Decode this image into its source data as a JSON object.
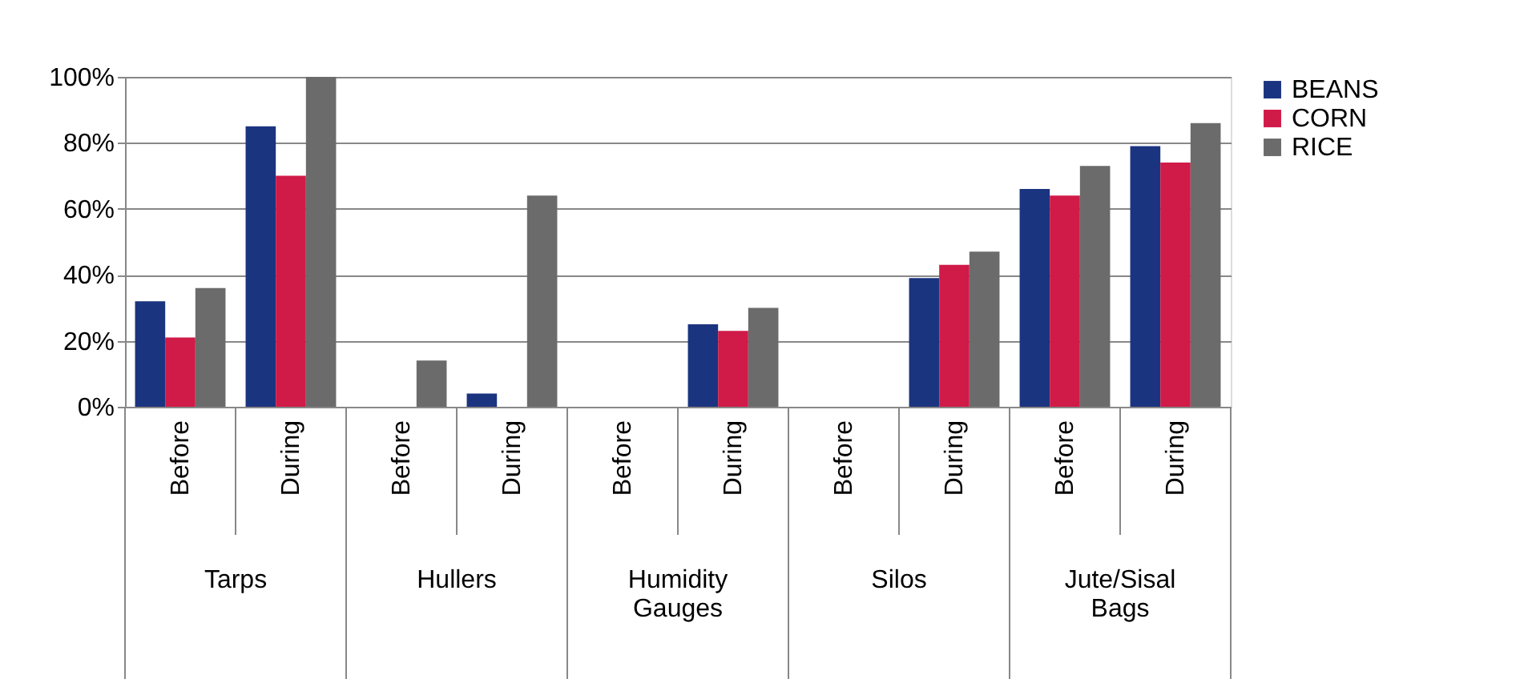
{
  "chart_data": {
    "type": "bar",
    "categories": [
      "Before",
      "During",
      "Before",
      "During",
      "Before",
      "During",
      "Before",
      "During",
      "Before",
      "During"
    ],
    "annotations": [
      "Tarps",
      "Hullers",
      "Humidity Gauges",
      "Silos",
      "Jute/Sisal Bags"
    ],
    "series": [
      {
        "name": "BEANS",
        "color": "#1b3480",
        "values": [
          32,
          85,
          0,
          4,
          0,
          25,
          0,
          39,
          66,
          79
        ]
      },
      {
        "name": "CORN",
        "color": "#d01a48",
        "values": [
          21,
          70,
          0,
          0,
          0,
          23,
          0,
          43,
          64,
          74
        ]
      },
      {
        "name": "RICE",
        "color": "#6b6b6b",
        "values": [
          36,
          100,
          14,
          64,
          0,
          30,
          0,
          47,
          73,
          86
        ]
      }
    ],
    "ylim": [
      0,
      100
    ],
    "yticks": [
      {
        "value": 0,
        "label": "0%"
      },
      {
        "value": 20,
        "label": "20%"
      },
      {
        "value": 40,
        "label": "40%"
      },
      {
        "value": 60,
        "label": "60%"
      },
      {
        "value": 80,
        "label": "80%"
      },
      {
        "value": 100,
        "label": "100%"
      }
    ],
    "grid": "y",
    "legend": "right"
  }
}
